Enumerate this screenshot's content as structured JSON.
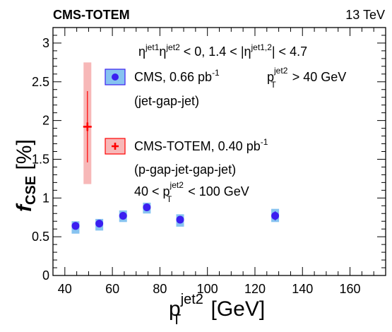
{
  "header": {
    "experiment": "CMS-TOTEM",
    "energy": "13 TeV"
  },
  "annotations": {
    "eta_cut": {
      "eta": "η",
      "sup1": "jet1",
      "sup2": "jet2",
      "part1": " < 0,  1.4 < |",
      "sup3": "jet1,2",
      "part2": "| < 4.7"
    },
    "pt_cut": {
      "p": "p",
      "sup": "jet2",
      "sub": "T",
      "rest": " > 40 GeV"
    },
    "pt_range": {
      "pre": "40 < p",
      "sup": "jet2",
      "sub": "T",
      "rest": " < 100 GeV"
    }
  },
  "legend": {
    "cms": {
      "label": "CMS, 0.66 pb",
      "sup": "-1",
      "sublabel": "(jet-gap-jet)"
    },
    "totem": {
      "label": "CMS-TOTEM, 0.40 pb",
      "sup": "-1",
      "sublabel": "(p-gap-jet-gap-jet)"
    }
  },
  "axes": {
    "y_main": "f",
    "y_sub": "CSE",
    "y_unit": " [%]",
    "x_main": "p",
    "x_sup": "jet2",
    "x_sub": "T",
    "x_unit": " [GeV]"
  },
  "colors": {
    "cms_marker": "#3b1ff0",
    "cms_band": "#87c3f0",
    "totem_marker": "#ff0000",
    "totem_band": "#f7b8b8"
  },
  "chart_data": {
    "type": "scatter",
    "xlim": [
      35,
      175
    ],
    "ylim": [
      0,
      3.2
    ],
    "x_ticks": [
      40,
      60,
      80,
      100,
      120,
      140,
      160
    ],
    "y_ticks": [
      0,
      0.5,
      1,
      1.5,
      2,
      2.5,
      3
    ],
    "y_tick_labels": [
      "0",
      "0.5",
      "1",
      "1.5",
      "2",
      "2.5",
      "3"
    ],
    "series": [
      {
        "name": "CMS, 0.66 pb-1 (jet-gap-jet)",
        "marker": "circle",
        "points": [
          {
            "x": 44.5,
            "y": 0.64,
            "stat_err": 0.05,
            "syst_lo": 0.1,
            "syst_hi": 0.06
          },
          {
            "x": 54.5,
            "y": 0.67,
            "stat_err": 0.05,
            "syst_lo": 0.09,
            "syst_hi": 0.06
          },
          {
            "x": 64.5,
            "y": 0.77,
            "stat_err": 0.05,
            "syst_lo": 0.08,
            "syst_hi": 0.07
          },
          {
            "x": 74.5,
            "y": 0.88,
            "stat_err": 0.05,
            "syst_lo": 0.08,
            "syst_hi": 0.06
          },
          {
            "x": 88.5,
            "y": 0.72,
            "stat_err": 0.05,
            "syst_lo": 0.09,
            "syst_hi": 0.07
          },
          {
            "x": 128.5,
            "y": 0.77,
            "stat_err": 0.06,
            "syst_lo": 0.08,
            "syst_hi": 0.09
          }
        ]
      },
      {
        "name": "CMS-TOTEM, 0.40 pb-1 (p-gap-jet-gap-jet)",
        "marker": "cross",
        "points": [
          {
            "x": 49.5,
            "y": 1.92,
            "stat_err_lo": 0.46,
            "stat_err_hi": 0.46,
            "syst_lo": 0.74,
            "syst_hi": 0.83
          }
        ]
      }
    ]
  }
}
